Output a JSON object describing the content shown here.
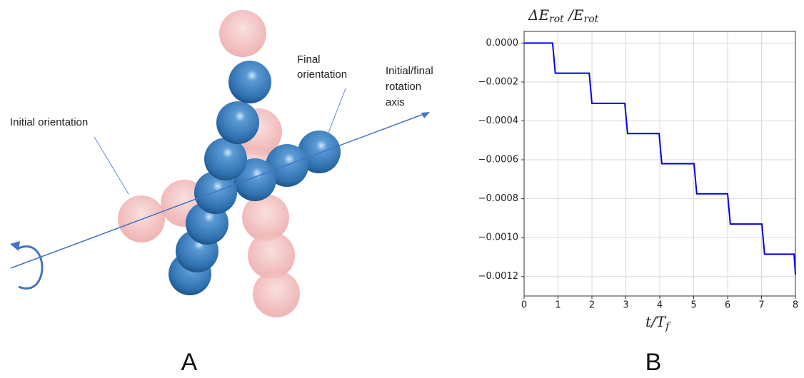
{
  "panel_a": {
    "label": "A",
    "annotations": [
      [
        "Initial orientation"
      ],
      [
        "Final",
        "orientation"
      ],
      [
        "Initial/final",
        "rotation",
        "axis"
      ]
    ]
  },
  "panel_b": {
    "label": "B"
  },
  "chart_data": {
    "type": "line",
    "title": [
      "ΔE",
      "rot",
      " /E",
      "rot"
    ],
    "xlabel": [
      "t/T",
      "f"
    ],
    "x": [
      0,
      0.84,
      0.92,
      1.92,
      2.0,
      2.97,
      3.05,
      3.98,
      4.06,
      5.01,
      5.09,
      6.0,
      6.08,
      7.01,
      7.09,
      7.96,
      8
    ],
    "values": [
      0,
      0,
      -0.000155,
      -0.000155,
      -0.00031,
      -0.00031,
      -0.000465,
      -0.000465,
      -0.00062,
      -0.00062,
      -0.000775,
      -0.000775,
      -0.00093,
      -0.00093,
      -0.001085,
      -0.001085,
      -0.00119
    ],
    "color": "#0000ee",
    "xlim": [
      0,
      8
    ],
    "xticks": [
      0,
      1,
      2,
      3,
      4,
      5,
      6,
      7,
      8
    ],
    "ylim": [
      -0.0013,
      6e-05
    ],
    "yticks": [
      {
        "value": 0,
        "label": "0.0000"
      },
      {
        "value": -0.0002,
        "label": "−0.0002"
      },
      {
        "value": -0.0004,
        "label": "−0.0004"
      },
      {
        "value": -0.0006,
        "label": "−0.0006"
      },
      {
        "value": -0.0008,
        "label": "−0.0008"
      },
      {
        "value": -0.001,
        "label": "−0.0010"
      },
      {
        "value": -0.0012,
        "label": "−0.0012"
      }
    ],
    "grid": true
  }
}
